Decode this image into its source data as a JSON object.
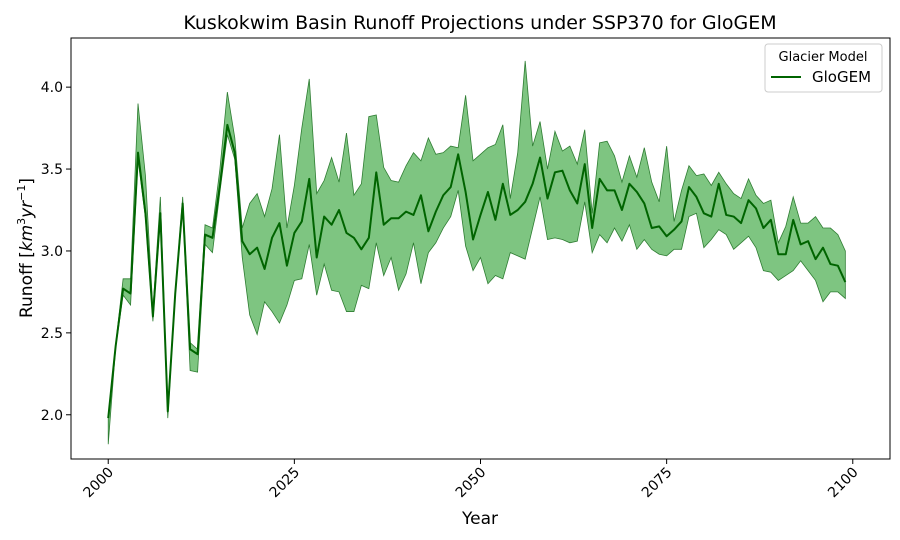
{
  "chart_data": {
    "type": "line",
    "title": "Kuskokwim Basin Runoff Projections under SSP370 for GloGEM",
    "xlabel": "Year",
    "ylabel": "Runoff [km³yr⁻¹]",
    "ylabel_parts": {
      "pre": "Runoff [",
      "km": "km",
      "sup1": "3",
      "yr": "yr",
      "sup2": "−1",
      "post": "]"
    },
    "xlim": [
      1995,
      2105
    ],
    "ylim": [
      1.73,
      4.3
    ],
    "xticks": [
      2000,
      2025,
      2050,
      2075,
      2100
    ],
    "xtick_labels": [
      "2000",
      "2025",
      "2050",
      "2075",
      "2100"
    ],
    "yticks": [
      2.0,
      2.5,
      3.0,
      3.5,
      4.0
    ],
    "ytick_labels": [
      "2.0",
      "2.5",
      "3.0",
      "3.5",
      "4.0"
    ],
    "grid": false,
    "legend": {
      "title": "Glacier Model",
      "placement": "top-right"
    },
    "colors": {
      "line": "#006400",
      "band": "#4CAF50",
      "band_edge": "#2e7d32"
    },
    "series": [
      {
        "name": "GloGEM",
        "x": [
          2000,
          2001,
          2002,
          2003,
          2004,
          2005,
          2006,
          2007,
          2008,
          2009,
          2010,
          2011,
          2012,
          2013,
          2014,
          2015,
          2016,
          2017,
          2018,
          2019,
          2020,
          2021,
          2022,
          2023,
          2024,
          2025,
          2026,
          2027,
          2028,
          2029,
          2030,
          2031,
          2032,
          2033,
          2034,
          2035,
          2036,
          2037,
          2038,
          2039,
          2040,
          2041,
          2042,
          2043,
          2044,
          2045,
          2046,
          2047,
          2048,
          2049,
          2050,
          2051,
          2052,
          2053,
          2054,
          2055,
          2056,
          2057,
          2058,
          2059,
          2060,
          2061,
          2062,
          2063,
          2064,
          2065,
          2066,
          2067,
          2068,
          2069,
          2070,
          2071,
          2072,
          2073,
          2074,
          2075,
          2076,
          2077,
          2078,
          2079,
          2080,
          2081,
          2082,
          2083,
          2084,
          2085,
          2086,
          2087,
          2088,
          2089,
          2090,
          2091,
          2092,
          2093,
          2094,
          2095,
          2096,
          2097,
          2098,
          2099
        ],
        "mean": [
          1.98,
          2.42,
          2.77,
          2.74,
          3.6,
          3.23,
          2.6,
          3.23,
          2.02,
          2.74,
          3.29,
          2.4,
          2.37,
          3.1,
          3.08,
          3.4,
          3.77,
          3.6,
          3.06,
          2.98,
          3.02,
          2.89,
          3.08,
          3.17,
          2.91,
          3.11,
          3.18,
          3.44,
          2.96,
          3.21,
          3.16,
          3.25,
          3.11,
          3.08,
          3.01,
          3.08,
          3.48,
          3.16,
          3.2,
          3.2,
          3.24,
          3.22,
          3.34,
          3.12,
          3.24,
          3.34,
          3.39,
          3.59,
          3.36,
          3.07,
          3.22,
          3.36,
          3.19,
          3.41,
          3.22,
          3.25,
          3.3,
          3.41,
          3.57,
          3.32,
          3.48,
          3.49,
          3.37,
          3.29,
          3.53,
          3.14,
          3.44,
          3.37,
          3.37,
          3.25,
          3.41,
          3.36,
          3.29,
          3.14,
          3.15,
          3.09,
          3.13,
          3.18,
          3.39,
          3.33,
          3.23,
          3.21,
          3.41,
          3.22,
          3.21,
          3.17,
          3.31,
          3.26,
          3.14,
          3.19,
          2.98,
          2.98,
          3.19,
          3.04,
          3.06,
          2.95,
          3.02,
          2.92,
          2.91,
          2.81
        ],
        "upper": [
          1.99,
          2.43,
          2.83,
          2.83,
          3.9,
          3.46,
          2.64,
          3.33,
          2.04,
          2.75,
          3.33,
          2.44,
          2.4,
          3.16,
          3.14,
          3.5,
          3.97,
          3.69,
          3.14,
          3.29,
          3.35,
          3.21,
          3.38,
          3.71,
          3.14,
          3.4,
          3.75,
          4.05,
          3.35,
          3.43,
          3.57,
          3.42,
          3.72,
          3.34,
          3.41,
          3.82,
          3.83,
          3.51,
          3.43,
          3.42,
          3.52,
          3.6,
          3.55,
          3.69,
          3.59,
          3.6,
          3.64,
          3.63,
          3.95,
          3.55,
          3.59,
          3.63,
          3.65,
          3.77,
          3.32,
          3.6,
          4.16,
          3.64,
          3.79,
          3.5,
          3.73,
          3.61,
          3.64,
          3.53,
          3.74,
          3.23,
          3.66,
          3.67,
          3.58,
          3.42,
          3.58,
          3.45,
          3.63,
          3.42,
          3.3,
          3.64,
          3.18,
          3.37,
          3.52,
          3.46,
          3.47,
          3.4,
          3.48,
          3.41,
          3.35,
          3.32,
          3.44,
          3.34,
          3.29,
          3.31,
          3.05,
          3.15,
          3.33,
          3.17,
          3.17,
          3.21,
          3.14,
          3.14,
          3.1,
          3.0
        ],
        "lower": [
          1.82,
          2.41,
          2.73,
          2.67,
          3.56,
          3.2,
          2.57,
          3.2,
          1.98,
          2.73,
          3.26,
          2.27,
          2.26,
          3.04,
          2.99,
          3.36,
          3.71,
          3.56,
          2.96,
          2.61,
          2.49,
          2.69,
          2.63,
          2.56,
          2.67,
          2.82,
          2.83,
          3.04,
          2.73,
          2.92,
          2.76,
          2.75,
          2.63,
          2.63,
          2.79,
          2.77,
          3.05,
          2.85,
          2.96,
          2.76,
          2.86,
          3.05,
          2.8,
          2.99,
          3.05,
          3.14,
          3.21,
          3.37,
          3.03,
          2.88,
          2.96,
          2.8,
          2.85,
          2.83,
          2.99,
          2.97,
          2.95,
          3.14,
          3.33,
          3.07,
          3.08,
          3.07,
          3.05,
          3.06,
          3.3,
          2.99,
          3.1,
          3.05,
          3.14,
          3.06,
          3.16,
          3.01,
          3.07,
          3.01,
          2.98,
          2.97,
          3.01,
          3.01,
          3.21,
          3.23,
          3.02,
          3.07,
          3.13,
          3.1,
          3.01,
          3.05,
          3.09,
          3.02,
          2.88,
          2.87,
          2.82,
          2.85,
          2.88,
          2.94,
          2.88,
          2.82,
          2.69,
          2.75,
          2.75,
          2.71
        ]
      }
    ]
  }
}
